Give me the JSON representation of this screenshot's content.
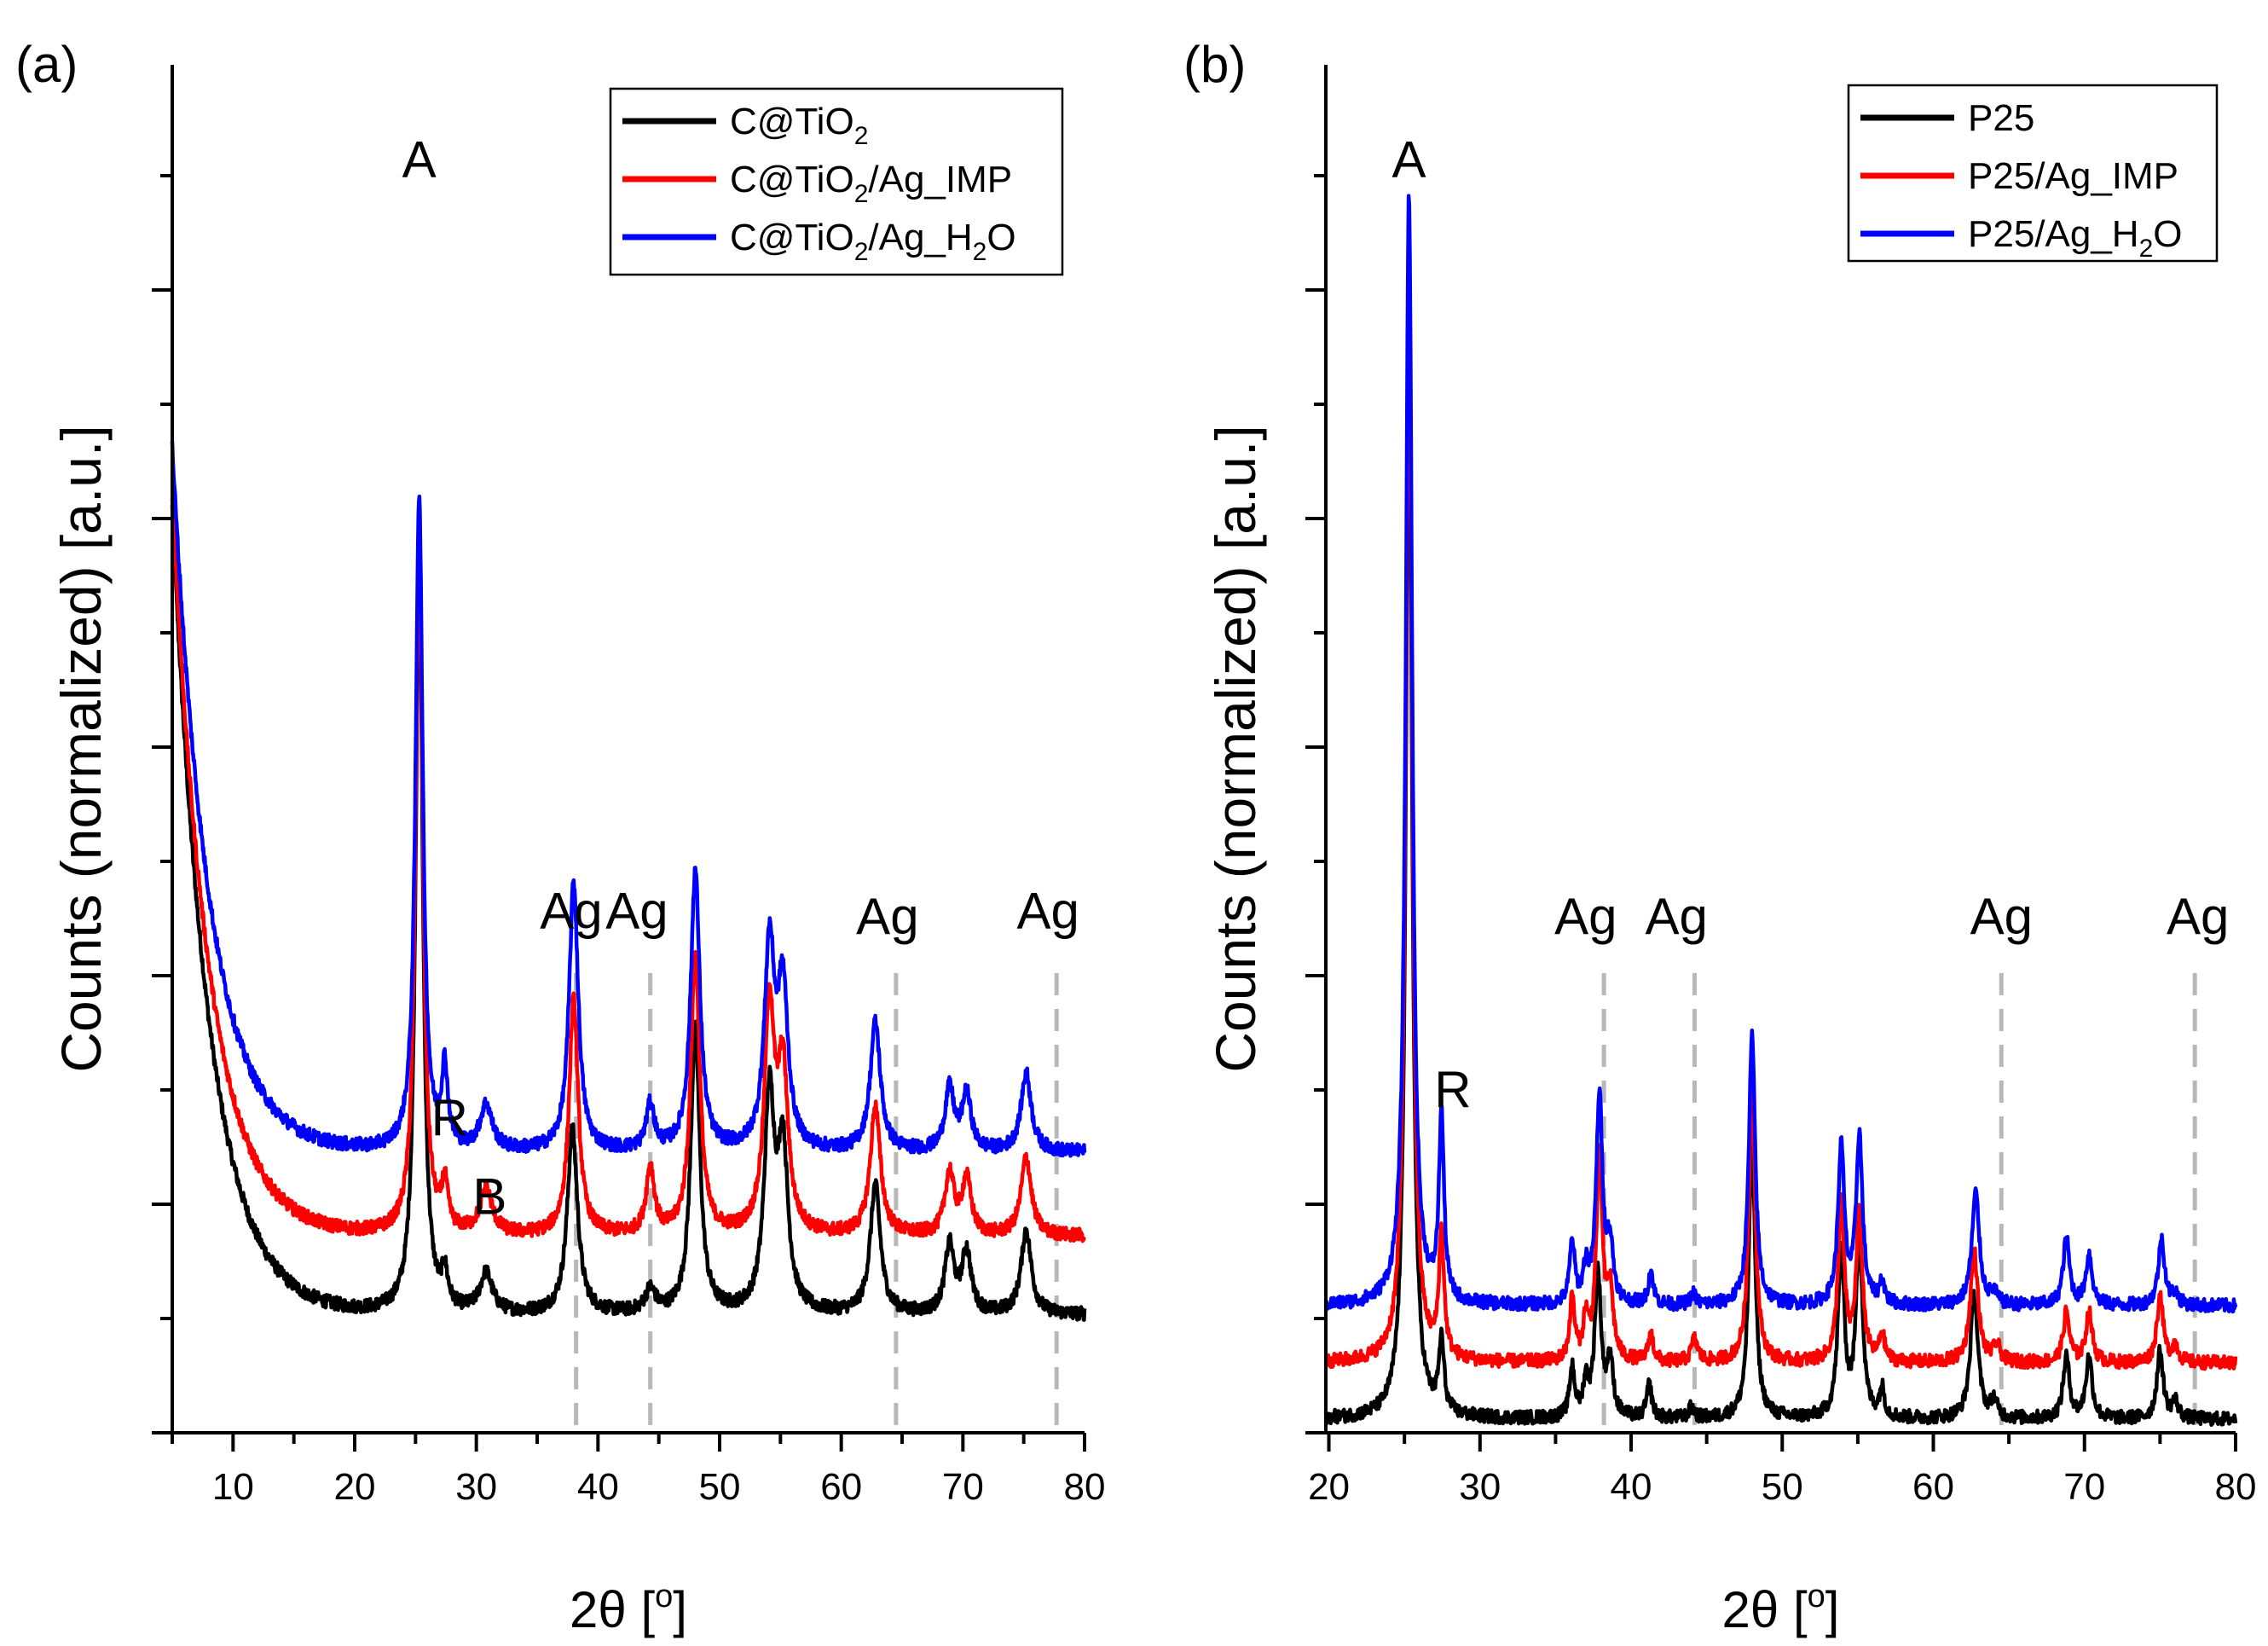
{
  "chart_data": [
    {
      "type": "line",
      "panel_label": "(a)",
      "xlabel": "2θ [",
      "xlabel_sup": "o",
      "xlabel_end": "]",
      "ylabel": "Counts (normalized) [a.u.]",
      "xlim": [
        5,
        80
      ],
      "ylim": [
        0,
        1.22
      ],
      "x_ticks": [
        10,
        20,
        30,
        40,
        50,
        60,
        70,
        80
      ],
      "x_tick_labels": [
        "10",
        "20",
        "30",
        "40",
        "50",
        "60",
        "70",
        "80"
      ],
      "legend_position": "top-right",
      "legend": [
        {
          "base": "C@TiO",
          "sub": "2",
          "tail": "",
          "sub2": "",
          "tail2": ""
        },
        {
          "base": "C@TiO",
          "sub": "2",
          "tail": "/Ag_IMP",
          "sub2": "",
          "tail2": ""
        },
        {
          "base": "C@TiO",
          "sub": "2",
          "tail": "/Ag_H",
          "sub2": "2",
          "tail2": "O"
        }
      ],
      "series": [
        {
          "name": "C@TiO2",
          "color": "#000000",
          "offset": 0.0,
          "background": {
            "amp": 0.72,
            "decay": 3.0,
            "base": 0.105
          },
          "peaks": [
            [
              25.3,
              0.68,
              0.35
            ],
            [
              27.4,
              0.03,
              0.3
            ],
            [
              30.8,
              0.035,
              0.6
            ],
            [
              37.9,
              0.165,
              0.5
            ],
            [
              44.3,
              0.02,
              0.5
            ],
            [
              48.0,
              0.255,
              0.45
            ],
            [
              54.1,
              0.19,
              0.5
            ],
            [
              55.2,
              0.14,
              0.5
            ],
            [
              62.8,
              0.115,
              0.5
            ],
            [
              68.9,
              0.06,
              0.45
            ],
            [
              70.3,
              0.055,
              0.45
            ],
            [
              75.2,
              0.075,
              0.5
            ]
          ]
        },
        {
          "name": "C@TiO2/Ag_IMP",
          "color": "#ff0000",
          "offset": 0.07,
          "background": {
            "amp": 0.66,
            "decay": 3.0,
            "base": 0.105
          },
          "peaks": [
            [
              25.3,
              0.625,
              0.35
            ],
            [
              27.4,
              0.04,
              0.3
            ],
            [
              30.8,
              0.04,
              0.6
            ],
            [
              38.0,
              0.21,
              0.45
            ],
            [
              44.3,
              0.06,
              0.4
            ],
            [
              48.0,
              0.25,
              0.45
            ],
            [
              54.1,
              0.2,
              0.5
            ],
            [
              55.2,
              0.14,
              0.5
            ],
            [
              62.8,
              0.115,
              0.5
            ],
            [
              68.9,
              0.055,
              0.45
            ],
            [
              70.3,
              0.05,
              0.45
            ],
            [
              75.2,
              0.07,
              0.5
            ]
          ]
        },
        {
          "name": "C@TiO2/Ag_H2O",
          "color": "#0000ff",
          "offset": 0.145,
          "background": {
            "amp": 0.63,
            "decay": 3.0,
            "base": 0.105
          },
          "peaks": [
            [
              25.3,
              0.585,
              0.35
            ],
            [
              27.4,
              0.07,
              0.3
            ],
            [
              30.8,
              0.04,
              0.6
            ],
            [
              38.0,
              0.24,
              0.45
            ],
            [
              44.3,
              0.04,
              0.4
            ],
            [
              48.0,
              0.25,
              0.45
            ],
            [
              54.1,
              0.18,
              0.5
            ],
            [
              55.2,
              0.14,
              0.5
            ],
            [
              62.8,
              0.115,
              0.5
            ],
            [
              68.9,
              0.055,
              0.45
            ],
            [
              70.3,
              0.05,
              0.45
            ],
            [
              75.2,
              0.07,
              0.5
            ]
          ]
        }
      ],
      "reference_lines": [
        38.2,
        44.3,
        64.5,
        77.7
      ],
      "annotations": [
        {
          "text": "A",
          "x": 25.3,
          "y": 1.12
        },
        {
          "text": "R",
          "x": 27.8,
          "y": 0.265
        },
        {
          "text": "B",
          "x": 31.1,
          "y": 0.195
        },
        {
          "text": "Ag",
          "x": 37.8,
          "y": 0.45
        },
        {
          "text": "Ag",
          "x": 43.2,
          "y": 0.45
        },
        {
          "text": "Ag",
          "x": 63.8,
          "y": 0.445
        },
        {
          "text": "Ag",
          "x": 77.0,
          "y": 0.45
        }
      ]
    },
    {
      "type": "line",
      "panel_label": "(b)",
      "xlabel": "2θ [",
      "xlabel_sup": "o",
      "xlabel_end": "]",
      "ylabel": "Counts (normalized) [a.u.]",
      "xlim": [
        19.8,
        80
      ],
      "ylim": [
        0,
        1.22
      ],
      "x_ticks": [
        20,
        30,
        40,
        50,
        60,
        70,
        80
      ],
      "x_tick_labels": [
        "20",
        "30",
        "40",
        "50",
        "60",
        "70",
        "80"
      ],
      "legend_position": "top-right",
      "legend": [
        {
          "base": "P25",
          "sub": "",
          "tail": "",
          "sub2": "",
          "tail2": ""
        },
        {
          "base": "P25/Ag_IMP",
          "sub": "",
          "tail": "",
          "sub2": "",
          "tail2": ""
        },
        {
          "base": "P25/Ag_H",
          "sub": "2",
          "tail": "O",
          "sub2": "",
          "tail2": ""
        }
      ],
      "series": [
        {
          "name": "P25",
          "color": "#000000",
          "offset": 0.012,
          "background": {
            "amp": 0.0,
            "decay": 3.0,
            "base": 0.0
          },
          "peaks": [
            [
              25.3,
              0.95,
              0.25
            ],
            [
              27.45,
              0.065,
              0.2
            ],
            [
              36.1,
              0.045,
              0.2
            ],
            [
              37.0,
              0.03,
              0.2
            ],
            [
              37.8,
              0.13,
              0.25
            ],
            [
              38.6,
              0.05,
              0.25
            ],
            [
              41.2,
              0.03,
              0.2
            ],
            [
              44.0,
              0.01,
              0.2
            ],
            [
              48.0,
              0.25,
              0.25
            ],
            [
              53.9,
              0.15,
              0.25
            ],
            [
              55.1,
              0.165,
              0.25
            ],
            [
              56.6,
              0.025,
              0.2
            ],
            [
              62.7,
              0.11,
              0.3
            ],
            [
              64.0,
              0.015,
              0.25
            ],
            [
              68.8,
              0.055,
              0.25
            ],
            [
              70.3,
              0.055,
              0.25
            ],
            [
              75.0,
              0.06,
              0.25
            ],
            [
              76.0,
              0.015,
              0.25
            ]
          ]
        },
        {
          "name": "P25/Ag_IMP",
          "color": "#ff0000",
          "offset": 0.062,
          "background": {
            "amp": 0.0,
            "decay": 3.0,
            "base": 0.0
          },
          "peaks": [
            [
              25.3,
              0.97,
              0.25
            ],
            [
              27.45,
              0.11,
              0.2
            ],
            [
              36.1,
              0.055,
              0.2
            ],
            [
              37.0,
              0.035,
              0.2
            ],
            [
              37.9,
              0.18,
              0.25
            ],
            [
              38.6,
              0.06,
              0.25
            ],
            [
              41.3,
              0.025,
              0.2
            ],
            [
              44.2,
              0.02,
              0.25
            ],
            [
              48.0,
              0.25,
              0.25
            ],
            [
              53.9,
              0.14,
              0.25
            ],
            [
              55.1,
              0.13,
              0.25
            ],
            [
              56.6,
              0.025,
              0.2
            ],
            [
              62.7,
              0.1,
              0.3
            ],
            [
              64.2,
              0.015,
              0.25
            ],
            [
              68.8,
              0.045,
              0.25
            ],
            [
              70.3,
              0.045,
              0.25
            ],
            [
              75.0,
              0.06,
              0.25
            ],
            [
              76.0,
              0.015,
              0.25
            ]
          ]
        },
        {
          "name": "P25/Ag_H2O",
          "color": "#0000ff",
          "offset": 0.113,
          "background": {
            "amp": 0.0,
            "decay": 3.0,
            "base": 0.0
          },
          "peaks": [
            [
              25.3,
              0.99,
              0.25
            ],
            [
              27.45,
              0.165,
              0.2
            ],
            [
              36.1,
              0.055,
              0.2
            ],
            [
              37.0,
              0.03,
              0.2
            ],
            [
              37.9,
              0.185,
              0.25
            ],
            [
              38.6,
              0.05,
              0.25
            ],
            [
              41.3,
              0.03,
              0.2
            ],
            [
              44.1,
              0.01,
              0.2
            ],
            [
              48.0,
              0.24,
              0.25
            ],
            [
              53.9,
              0.14,
              0.25
            ],
            [
              55.1,
              0.15,
              0.25
            ],
            [
              56.6,
              0.02,
              0.2
            ],
            [
              62.8,
              0.1,
              0.3
            ],
            [
              64.0,
              0.01,
              0.25
            ],
            [
              68.8,
              0.06,
              0.25
            ],
            [
              70.3,
              0.045,
              0.25
            ],
            [
              75.1,
              0.06,
              0.25
            ],
            [
              76.0,
              0.01,
              0.25
            ]
          ]
        }
      ],
      "reference_lines": [
        38.2,
        44.2,
        64.5,
        77.3
      ],
      "annotations": [
        {
          "text": "A",
          "x": 25.3,
          "y": 1.12
        },
        {
          "text": "R",
          "x": 28.2,
          "y": 0.29
        },
        {
          "text": "Ag",
          "x": 37.0,
          "y": 0.445
        },
        {
          "text": "Ag",
          "x": 43.0,
          "y": 0.445
        },
        {
          "text": "Ag",
          "x": 64.5,
          "y": 0.445
        },
        {
          "text": "Ag",
          "x": 77.5,
          "y": 0.445
        }
      ]
    }
  ]
}
